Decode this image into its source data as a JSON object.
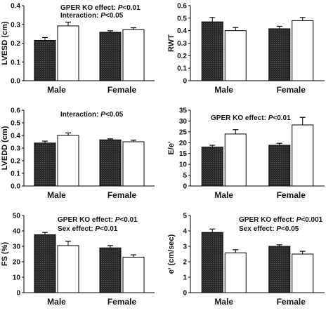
{
  "chart_data": [
    {
      "type": "bar",
      "panel": "top-left",
      "ylabel": "LVESD (cm)",
      "ylim": [
        0,
        0.4
      ],
      "yticks": [
        "0.0",
        "0.1",
        "0.2",
        "0.3",
        "0.4"
      ],
      "categories": [
        "Male",
        "Female"
      ],
      "series": [
        {
          "values": [
            0.215,
            0.258
          ],
          "errors": [
            0.015,
            0.008
          ],
          "style": "dark"
        },
        {
          "values": [
            0.292,
            0.272
          ],
          "errors": [
            0.02,
            0.01
          ],
          "style": "white"
        }
      ],
      "annotations": [
        {
          "prefix": "GPER KO effect: ",
          "italic": "P",
          "suffix": "<0.01"
        },
        {
          "prefix": "Interaction: ",
          "italic": "P",
          "suffix": "<0.05"
        }
      ]
    },
    {
      "type": "bar",
      "panel": "top-right",
      "ylabel": "RWT",
      "ylim": [
        0,
        0.6
      ],
      "yticks": [
        "0",
        "0.1",
        "0.2",
        "0.3",
        "0.4",
        "0.5",
        "0.6"
      ],
      "categories": [
        "Male",
        "Female"
      ],
      "series": [
        {
          "values": [
            0.47,
            0.415
          ],
          "errors": [
            0.035,
            0.02
          ],
          "style": "dark"
        },
        {
          "values": [
            0.4,
            0.48
          ],
          "errors": [
            0.025,
            0.025
          ],
          "style": "white"
        }
      ],
      "annotations": []
    },
    {
      "type": "bar",
      "panel": "middle-left",
      "ylabel": "LVEDD (cm)",
      "ylim": [
        0,
        0.6
      ],
      "yticks": [
        "0.0",
        "0.1",
        "0.2",
        "0.3",
        "0.4",
        "0.5",
        "0.6"
      ],
      "categories": [
        "Male",
        "Female"
      ],
      "series": [
        {
          "values": [
            0.34,
            0.365
          ],
          "errors": [
            0.015,
            0.008
          ],
          "style": "dark"
        },
        {
          "values": [
            0.4,
            0.35
          ],
          "errors": [
            0.02,
            0.012
          ],
          "style": "white"
        }
      ],
      "annotations": [
        {
          "prefix": "Interaction: ",
          "italic": "P",
          "suffix": "<0.05"
        }
      ]
    },
    {
      "type": "bar",
      "panel": "middle-right",
      "ylabel": "E/e'",
      "ylim": [
        0,
        35
      ],
      "yticks": [
        "0",
        "5",
        "10",
        "15",
        "20",
        "25",
        "30",
        "35"
      ],
      "categories": [
        "Male",
        "Female"
      ],
      "series": [
        {
          "values": [
            18,
            18.8
          ],
          "errors": [
            0.8,
            0.9
          ],
          "style": "dark"
        },
        {
          "values": [
            24,
            28.2
          ],
          "errors": [
            2,
            3.5
          ],
          "style": "white"
        }
      ],
      "annotations": [
        {
          "prefix": "GPER KO effect: ",
          "italic": "P",
          "suffix": "<0.01"
        }
      ]
    },
    {
      "type": "bar",
      "panel": "bottom-left",
      "ylabel": "FS (%)",
      "ylim": [
        0,
        50
      ],
      "yticks": [
        "0",
        "10",
        "20",
        "30",
        "40",
        "50"
      ],
      "categories": [
        "Male",
        "Female"
      ],
      "series": [
        {
          "values": [
            37.5,
            29
          ],
          "errors": [
            1.5,
            1.5
          ],
          "style": "dark"
        },
        {
          "values": [
            30.5,
            23
          ],
          "errors": [
            2.8,
            1.5
          ],
          "style": "white"
        }
      ],
      "annotations": [
        {
          "prefix": "GPER KO effect: ",
          "italic": "P",
          "suffix": "<0.01"
        },
        {
          "prefix": "Sex effect: ",
          "italic": "P",
          "suffix": "<0.01"
        }
      ]
    },
    {
      "type": "bar",
      "panel": "bottom-right",
      "ylabel": "e' (cm/sec)",
      "ylim": [
        0,
        5
      ],
      "yticks": [
        "0",
        "1",
        "2",
        "3",
        "4",
        "5"
      ],
      "categories": [
        "Male",
        "Female"
      ],
      "series": [
        {
          "values": [
            3.9,
            3.0
          ],
          "errors": [
            0.22,
            0.1
          ],
          "style": "dark"
        },
        {
          "values": [
            2.58,
            2.5
          ],
          "errors": [
            0.2,
            0.18
          ],
          "style": "white"
        }
      ],
      "annotations": [
        {
          "prefix": "GPER KO effect: ",
          "italic": "P",
          "suffix": "<0.001"
        },
        {
          "prefix": "Sex effect: ",
          "italic": "P",
          "suffix": "<0.05"
        }
      ]
    }
  ]
}
